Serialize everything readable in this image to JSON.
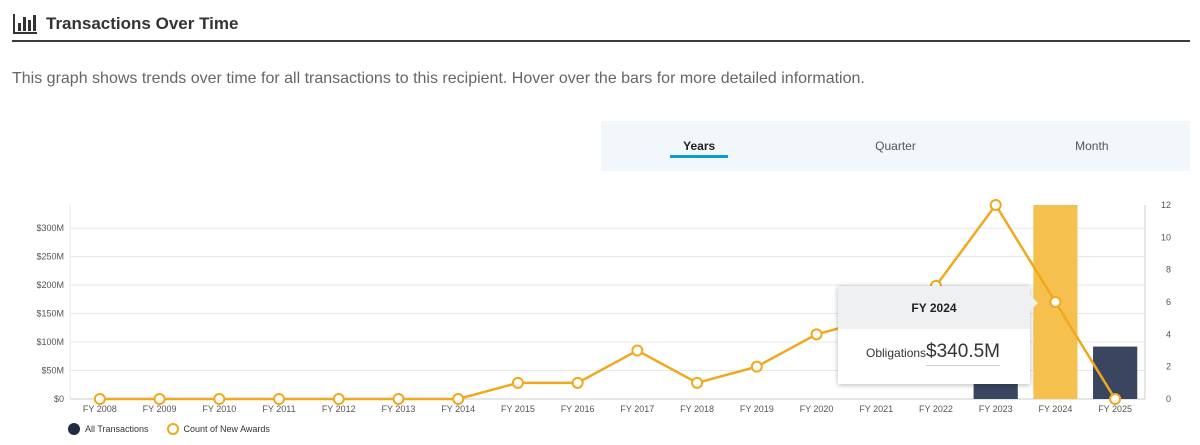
{
  "header": {
    "title": "Transactions Over Time",
    "icon": "bar-chart-icon"
  },
  "description": "This graph shows trends over time for all transactions to this recipient. Hover over the bars for more detailed information.",
  "period_tabs": [
    {
      "label": "Years",
      "active": true
    },
    {
      "label": "Quarter",
      "active": false
    },
    {
      "label": "Month",
      "active": false
    }
  ],
  "colors": {
    "bar": "#3a4560",
    "bar_highlight": "#f5c04d",
    "line": "#f0a81c",
    "grid": "#e8e8e8",
    "axis": "#cccccc"
  },
  "chart_data": {
    "type": "bar",
    "categories": [
      "FY 2008",
      "FY 2009",
      "FY 2010",
      "FY 2011",
      "FY 2012",
      "FY 2013",
      "FY 2014",
      "FY 2015",
      "FY 2016",
      "FY 2017",
      "FY 2018",
      "FY 2019",
      "FY 2020",
      "FY 2021",
      "FY 2022",
      "FY 2023",
      "FY 2024",
      "FY 2025"
    ],
    "series": [
      {
        "name": "All Transactions",
        "kind": "bar",
        "axis": "left",
        "values": [
          0,
          0,
          0,
          0,
          0,
          0,
          0,
          0,
          0,
          0,
          0,
          0,
          0,
          0,
          0,
          27,
          340.5,
          92
        ]
      },
      {
        "name": "Count of New Awards",
        "kind": "line",
        "axis": "right",
        "values": [
          0,
          0,
          0,
          0,
          0,
          0,
          0,
          1,
          1,
          3,
          1,
          2,
          4,
          5,
          7,
          12,
          6,
          0
        ]
      }
    ],
    "highlight_index": 16,
    "y_left": {
      "ticks": [
        "$0",
        "$50M",
        "$100M",
        "$150M",
        "$200M",
        "$250M",
        "$300M"
      ],
      "tick_values": [
        0,
        50,
        100,
        150,
        200,
        250,
        300
      ],
      "max": 340.5
    },
    "y_right": {
      "ticks": [
        "0",
        "2",
        "4",
        "6",
        "8",
        "10",
        "12"
      ],
      "tick_values": [
        0,
        2,
        4,
        6,
        8,
        10,
        12
      ],
      "max": 12
    }
  },
  "legend": [
    {
      "label": "All Transactions"
    },
    {
      "label": "Count of New Awards"
    }
  ],
  "tooltip": {
    "title": "FY 2024",
    "label": "Obligations",
    "value": "$340.5M"
  }
}
